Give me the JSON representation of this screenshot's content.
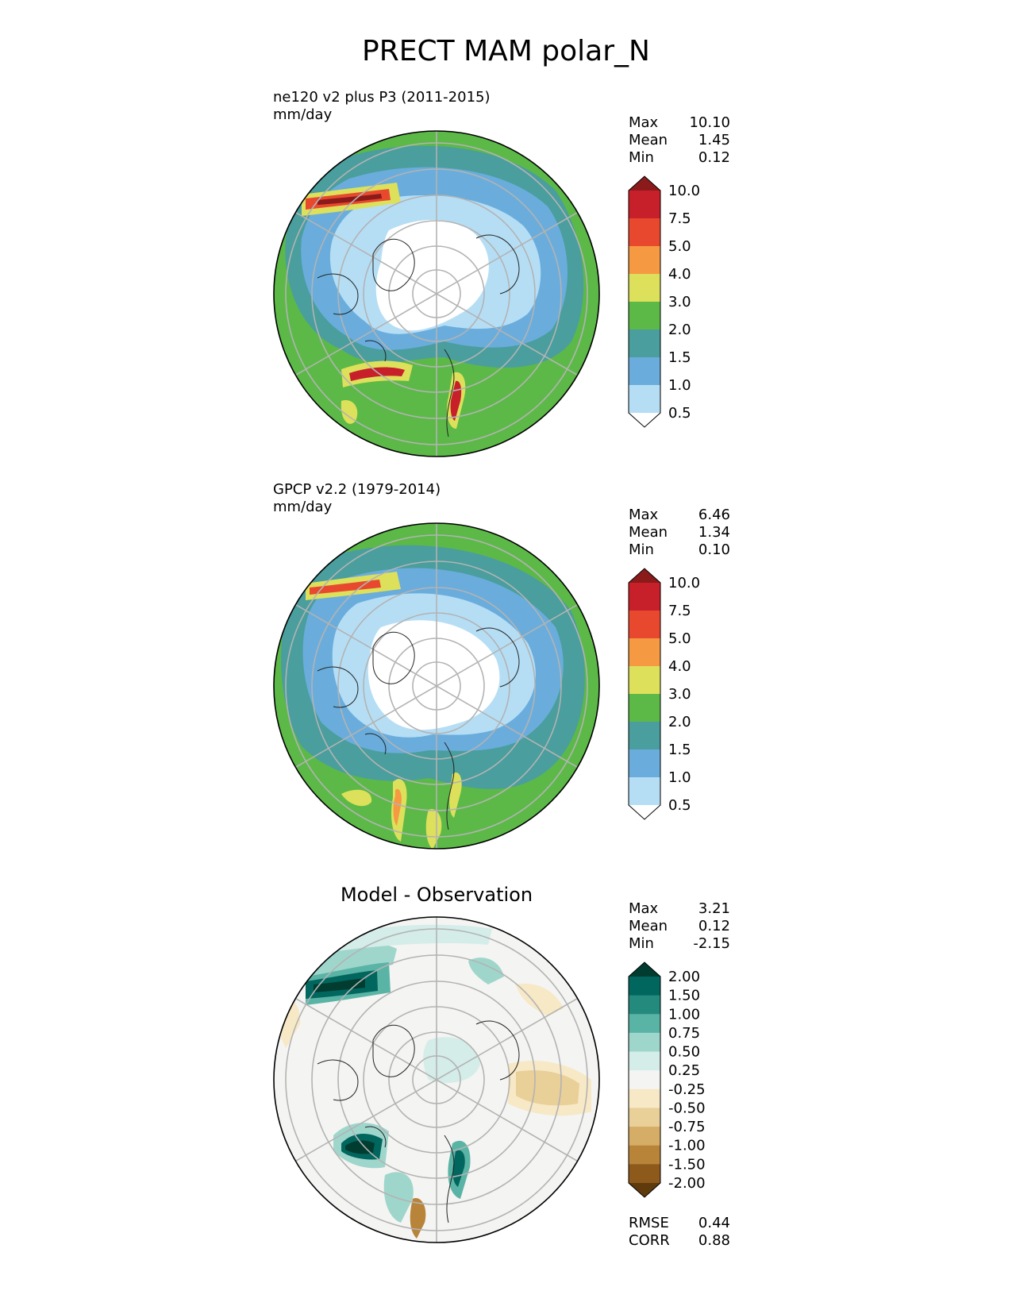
{
  "title": "PRECT MAM polar_N",
  "panels": [
    {
      "id": "test",
      "heading": "ne120 v2 plus P3 (2011-2015)",
      "units": "mm/day",
      "stats": [
        {
          "label": "Max",
          "value": "10.10"
        },
        {
          "label": "Mean",
          "value": "1.45"
        },
        {
          "label": "Min",
          "value": "0.12"
        }
      ],
      "colorbar": {
        "levels": [
          "10.0",
          "7.5",
          "5.0",
          "4.0",
          "3.0",
          "2.0",
          "1.5",
          "1.0",
          "0.5"
        ],
        "colors": [
          "#8b1a1a",
          "#c8202a",
          "#e8492e",
          "#f59a42",
          "#dde05a",
          "#5cb948",
          "#4a9e9e",
          "#6aaddc",
          "#b5def5",
          "#ffffff"
        ]
      }
    },
    {
      "id": "reference",
      "heading": "GPCP v2.2 (1979-2014)",
      "units": "mm/day",
      "stats": [
        {
          "label": "Max",
          "value": "6.46"
        },
        {
          "label": "Mean",
          "value": "1.34"
        },
        {
          "label": "Min",
          "value": "0.10"
        }
      ],
      "colorbar": {
        "levels": [
          "10.0",
          "7.5",
          "5.0",
          "4.0",
          "3.0",
          "2.0",
          "1.5",
          "1.0",
          "0.5"
        ],
        "colors": [
          "#8b1a1a",
          "#c8202a",
          "#e8492e",
          "#f59a42",
          "#dde05a",
          "#5cb948",
          "#4a9e9e",
          "#6aaddc",
          "#b5def5",
          "#ffffff"
        ]
      }
    },
    {
      "id": "diff",
      "heading": "Model - Observation",
      "stats": [
        {
          "label": "Max",
          "value": "3.21"
        },
        {
          "label": "Mean",
          "value": "0.12"
        },
        {
          "label": "Min",
          "value": "-2.15"
        }
      ],
      "metrics": [
        {
          "label": "RMSE",
          "value": "0.44"
        },
        {
          "label": "CORR",
          "value": "0.88"
        }
      ],
      "colorbar": {
        "levels": [
          "2.00",
          "1.50",
          "1.00",
          "0.75",
          "0.50",
          "0.25",
          "-0.25",
          "-0.50",
          "-0.75",
          "-1.00",
          "-1.50",
          "-2.00"
        ],
        "colors": [
          "#003c30",
          "#01665e",
          "#258a7e",
          "#5ab4a6",
          "#9fd6cc",
          "#d4ede8",
          "#f4f4f2",
          "#f7e8c6",
          "#e9cf98",
          "#d6ad66",
          "#b8843a",
          "#8d5a1c",
          "#5e3a0c"
        ]
      }
    }
  ]
}
